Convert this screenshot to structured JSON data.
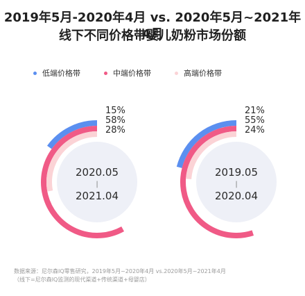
{
  "title": {
    "line1": "2019年5月-2020年4月 vs. 2020年5月~2021年4月",
    "line2": "线下不同价格带婴儿奶粉市场份额"
  },
  "colors": {
    "low": "#5b8ff0",
    "mid": "#f05a86",
    "high": "#fbd3d6",
    "inner_disc": "#eef0f7"
  },
  "legend": [
    {
      "label": "低端价格带",
      "color": "#5b8ff0"
    },
    {
      "label": "中端价格带",
      "color": "#f05a86"
    },
    {
      "label": "高端价格带",
      "color": "#fbd3d6"
    }
  ],
  "chart_data": [
    {
      "type": "radial-bar",
      "categories": [
        "低端价格带",
        "中端价格带",
        "高端价格带"
      ],
      "values": [
        15,
        58,
        28
      ],
      "value_labels": [
        "15%",
        "58%",
        "28%"
      ],
      "center_top": "2020.05",
      "center_sep": "|",
      "center_bottom": "2021.04"
    },
    {
      "type": "radial-bar",
      "categories": [
        "低端价格带",
        "中端价格带",
        "高端价格带"
      ],
      "values": [
        21,
        55,
        24
      ],
      "value_labels": [
        "21%",
        "55%",
        "24%"
      ],
      "center_top": "2019.05",
      "center_sep": "|",
      "center_bottom": "2020.04"
    }
  ],
  "footnote": {
    "line1": "数据来源：尼尔森IQ零售研究，2019年5月~2020年4月 vs.2020年5月~2021年4月",
    "line2": "（线下=尼尔森IQ监测的现代渠道+传统渠道+母婴店）"
  }
}
